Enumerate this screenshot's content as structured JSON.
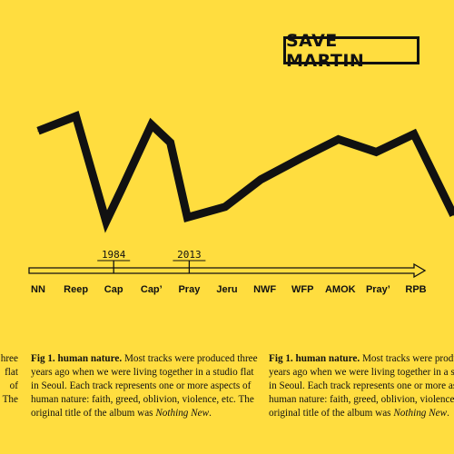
{
  "logo": {
    "text": "SAVE MARTIN"
  },
  "chart_data": {
    "type": "line",
    "categories": [
      "NN",
      "Reep",
      "Cap",
      "Cap’",
      "Pray",
      "Jeru",
      "NWF",
      "WFP",
      "AMOK",
      "Pray’",
      "RPB"
    ],
    "series": [
      {
        "values": [
          0.86,
          1.0,
          0.0,
          0.3,
          0.92,
          0.75,
          0.04,
          0.14,
          0.4,
          0.6,
          0.78,
          0.66,
          0.83,
          0.06
        ],
        "x": [
          0.0,
          1.0,
          1.8,
          2.2,
          3.0,
          3.5,
          3.95,
          4.95,
          5.9,
          6.95,
          7.95,
          8.95,
          9.95,
          11.0
        ]
      }
    ],
    "title": "",
    "xlabel": "",
    "ylabel": "",
    "timeline_markers": [
      {
        "label": "1984",
        "at_category": "Cap"
      },
      {
        "label": "2013",
        "at_category": "Pray"
      }
    ],
    "grid": false,
    "legend": "none"
  },
  "captions": {
    "left_fragment": [
      "hree",
      "flat",
      "of",
      "The"
    ],
    "main": {
      "label": "Fig 1. human nature.",
      "line1": " Most tracks were produced three",
      "line2": "years ago when we were living together in a studio flat",
      "line3": "in Seoul. Each track represents one or more aspects of",
      "line4": "human nature: faith, greed, oblivion, violence, etc. The",
      "line5_pre": "original title of the album was ",
      "line5_italic": "Nothing New",
      "line5_post": "."
    },
    "right_fragment": {
      "label": "Fig 1. human nature.",
      "line1": " Most tracks were produced three",
      "line2": "years ago when we were living together in a studio flat",
      "line3": "in Seoul. Each track represents one or more aspects of",
      "line4": "human nature: faith, greed, oblivion, violence, etc. The",
      "line5_pre": "original title of the album was ",
      "line5_italic": "Nothing New",
      "line5_post": "."
    }
  },
  "colors": {
    "background": "#FFDD3F",
    "ink": "#111111"
  }
}
